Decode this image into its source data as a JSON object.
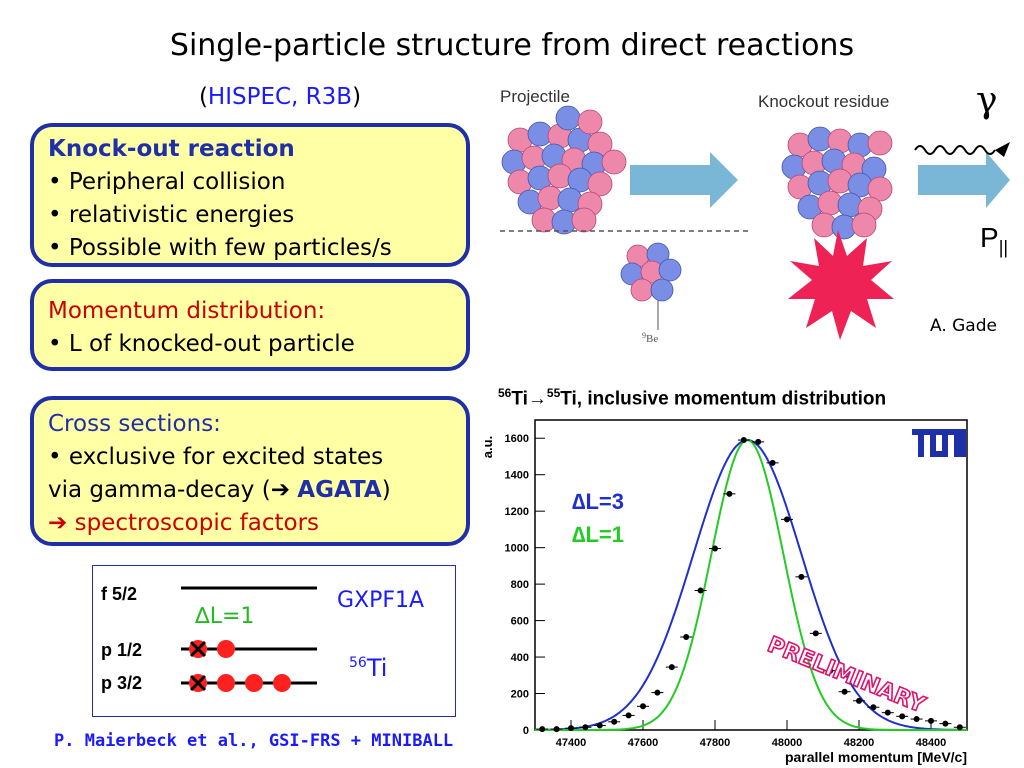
{
  "slide": {
    "title": "Single-particle structure from direct reactions",
    "subtitle_open": "(",
    "subtitle_link": "HISPEC, R3B",
    "subtitle_close": ")",
    "credit": "P. Maierbeck et al., GSI-FRS + MINIBALL",
    "gade": "A. Gade"
  },
  "box1": {
    "heading": "Knock-out reaction",
    "items": [
      "• Peripheral collision",
      "• relativistic energies",
      "• Possible with few particles/s"
    ]
  },
  "box2": {
    "heading": "Momentum distribution:",
    "items": [
      "• L of knocked-out particle"
    ]
  },
  "box3": {
    "heading": "Cross sections:",
    "line1": "• exclusive for excited states",
    "line2_pre": "via gamma-decay (",
    "arrow": "➔",
    "agata": "AGATA",
    "line2_post": ")",
    "line3": "spectroscopic factors"
  },
  "levels": {
    "f52": "f 5/2",
    "p12": "p 1/2",
    "p32": "p 3/2",
    "dl": "∆L=1",
    "model": "GXPF1A",
    "nucleus_mass": "56",
    "nucleus_sym": "Ti"
  },
  "diagram": {
    "projectile": "Projectile",
    "residue": "Knockout residue",
    "target_mass": "9",
    "target_sym": "Be",
    "gamma": "γ",
    "p_main": "P",
    "p_sub": "||"
  },
  "plot": {
    "title_m1": "56",
    "title_e1": "Ti→",
    "title_m2": "55",
    "title_e2": "Ti, inclusive momentum distribution",
    "ylabel": "a.u.",
    "xlabel": "parallel momentum [MeV/c]",
    "legend_l3": "∆L=3",
    "legend_l1": "∆L=1",
    "preliminary": "PRELIMINARY",
    "logo": "TUM"
  },
  "chart_data": {
    "type": "scatter",
    "title": "56Ti→55Ti, inclusive momentum distribution",
    "xlabel": "parallel momentum [MeV/c]",
    "ylabel": "a.u.",
    "xlim": [
      47300,
      48500
    ],
    "ylim": [
      0,
      1700
    ],
    "x_ticks": [
      47400,
      47600,
      47800,
      48000,
      48200,
      48400
    ],
    "y_ticks": [
      0,
      200,
      400,
      600,
      800,
      1000,
      1200,
      1400,
      1600
    ],
    "colors": {
      "L3": "#1f2fd0",
      "L1": "#22cc22",
      "data": "#000000"
    },
    "series": [
      {
        "name": "data",
        "x": [
          47320,
          47360,
          47400,
          47440,
          47480,
          47520,
          47560,
          47600,
          47640,
          47680,
          47720,
          47760,
          47800,
          47840,
          47880,
          47920,
          47960,
          48000,
          48040,
          48080,
          48120,
          48160,
          48200,
          48240,
          48280,
          48320,
          48360,
          48400,
          48440,
          48480
        ],
        "y": [
          5,
          5,
          10,
          15,
          25,
          45,
          80,
          130,
          205,
          345,
          510,
          765,
          995,
          1295,
          1590,
          1580,
          1465,
          1155,
          840,
          530,
          325,
          210,
          160,
          125,
          95,
          75,
          60,
          50,
          35,
          15
        ]
      },
      {
        "name": "∆L=3",
        "mean": 47890,
        "sigma": 150,
        "peak": 1590
      },
      {
        "name": "∆L=1",
        "mean": 47890,
        "sigma": 100,
        "peak": 1590
      }
    ]
  }
}
